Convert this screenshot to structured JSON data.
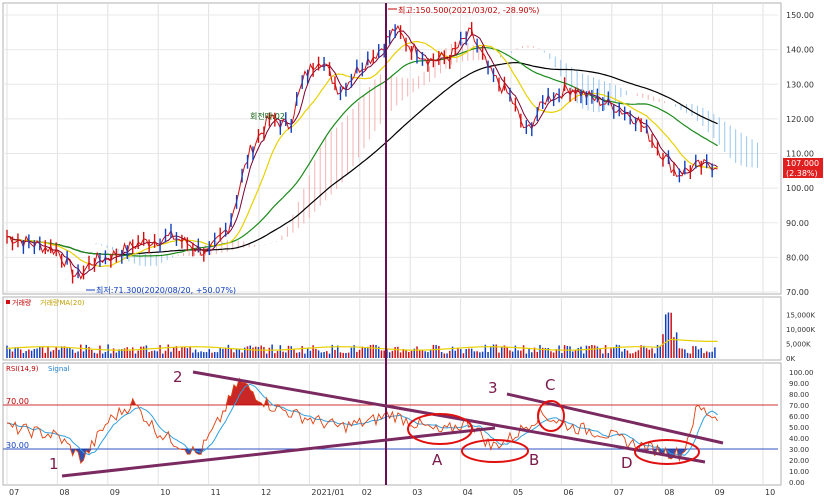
{
  "chart_data": [
    {
      "type": "line",
      "panel": "price",
      "x": [
        "07",
        "08",
        "09",
        "10",
        "11",
        "12",
        "2021/01",
        "02",
        "03",
        "04",
        "05",
        "06",
        "07",
        "08",
        "09",
        "10"
      ],
      "series": [
        {
          "values": [
            86,
            84,
            77,
            82,
            84,
            88,
            90,
            128,
            132,
            140,
            138,
            122,
            126,
            118,
            106,
            105
          ]
        }
      ],
      "ylim": [
        70,
        150
      ],
      "yticks": [
        "150.00",
        "140.00",
        "130.00",
        "120.00",
        "110.00",
        "100.00",
        "90.00",
        "80.00",
        "70.00"
      ],
      "annotations": {
        "high": "최고:150.500(2021/03/02, -28.90%)",
        "low": "최저:71.300(2020/08/20, +50.07%)",
        "ma_label": "회전매:02",
        "last_price": "107.000",
        "last_change": "(2.38%)"
      },
      "colors": {
        "price": "#d01010",
        "ma1": "#000000",
        "ma2": "#1a8a1a",
        "ma3": "#e8d000",
        "cloud": "#3080d0"
      }
    },
    {
      "type": "bar",
      "panel": "volume",
      "legend": [
        "거래량",
        "거래량MA(20)"
      ],
      "ylim": [
        0,
        20000
      ],
      "yticks": [
        "15,000K",
        "10,000K",
        "5,000K",
        "0K"
      ]
    },
    {
      "type": "line",
      "panel": "rsi",
      "legend": [
        "RSI(14,9)",
        "Signal"
      ],
      "ylim": [
        0,
        100
      ],
      "yticks": [
        "100.00",
        "90.00",
        "80.00",
        "70.00",
        "60.00",
        "50.00",
        "40.00",
        "30.00",
        "20.00",
        "10.00",
        "0.00"
      ],
      "reference_lines": {
        "upper": "70.00",
        "lower": "30.00"
      },
      "labels": [
        "1",
        "2",
        "3",
        "A",
        "B",
        "C",
        "D"
      ]
    }
  ]
}
